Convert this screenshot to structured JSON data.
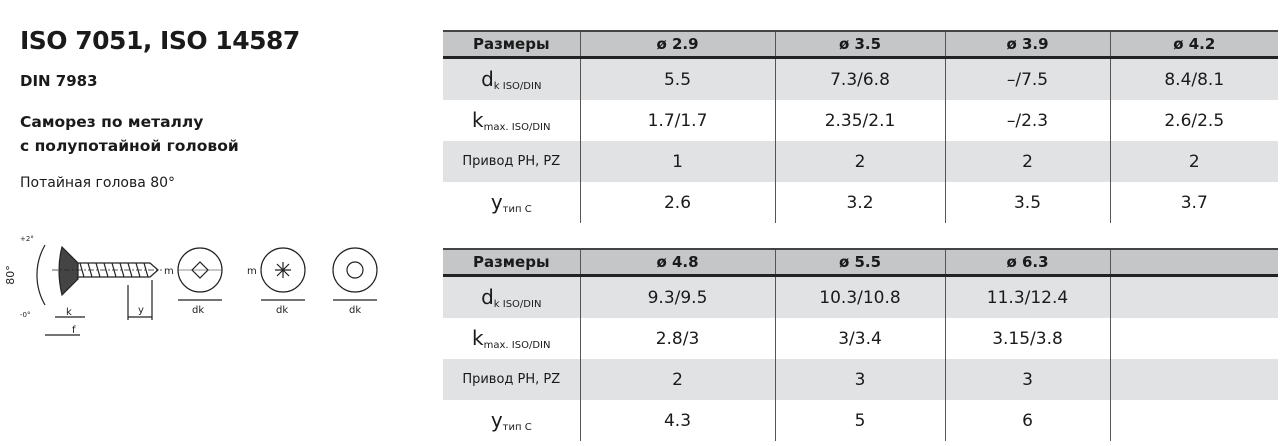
{
  "title": "ISO 7051, ISO 14587",
  "din": "DIN 7983",
  "description_line1": "Саморез по металлу",
  "description_line2": "с полупотайной головой",
  "note": "Потайная голова 80°",
  "diagram": {
    "angle": "80°",
    "angle_tol_plus": "+2°",
    "angle_tol_minus": "-0°",
    "k": "k",
    "f": "f",
    "y": "y",
    "m": "m",
    "dk": "dk"
  },
  "row_labels": {
    "header": "Размеры",
    "dk_main": "d",
    "dk_sub": "k ISO/DIN",
    "k_main": "k",
    "k_sub": "max. ISO/DIN",
    "drive": "Привод PH, PZ",
    "y_main": "y",
    "y_sub": "тип C"
  },
  "table1": {
    "sizes": [
      "ø 2.9",
      "ø 3.5",
      "ø 3.9",
      "ø 4.2"
    ],
    "dk": [
      "5.5",
      "7.3/6.8",
      "–/7.5",
      "8.4/8.1"
    ],
    "k": [
      "1.7/1.7",
      "2.35/2.1",
      "–/2.3",
      "2.6/2.5"
    ],
    "drive": [
      "1",
      "2",
      "2",
      "2"
    ],
    "y": [
      "2.6",
      "3.2",
      "3.5",
      "3.7"
    ]
  },
  "table2": {
    "sizes": [
      "ø 4.8",
      "ø 5.5",
      "ø 6.3",
      ""
    ],
    "dk": [
      "9.3/9.5",
      "10.3/10.8",
      "11.3/12.4",
      ""
    ],
    "k": [
      "2.8/3",
      "3/3.4",
      "3.15/3.8",
      ""
    ],
    "drive": [
      "2",
      "3",
      "3",
      ""
    ],
    "y": [
      "4.3",
      "5",
      "6",
      ""
    ]
  }
}
